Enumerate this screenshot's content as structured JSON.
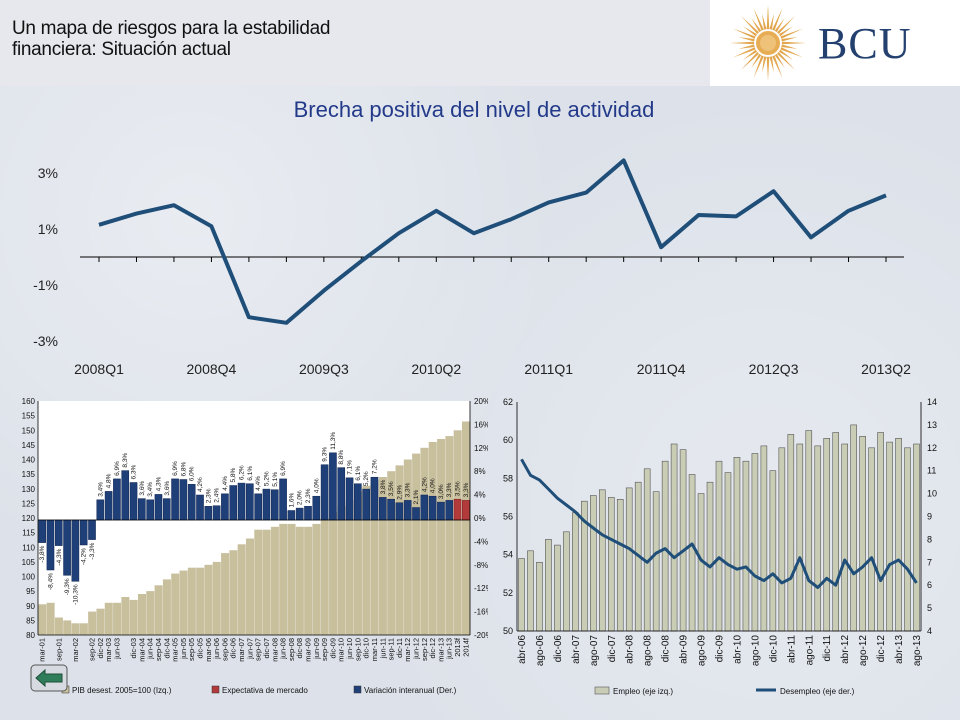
{
  "slide": {
    "title_line1": "Un mapa de riesgos para la estabilidad",
    "title_line2": "financiera: Situación actual",
    "logo_text": "BCU",
    "colors": {
      "navy": "#1f4e79",
      "khaki": "#c8bf9d",
      "maroon": "#b33a3a",
      "brand": "#23406f"
    }
  },
  "chart_data": [
    {
      "type": "line",
      "title": "Brecha positiva del nivel de actividad",
      "x": [
        "2008Q1",
        "2008Q2",
        "2008Q3",
        "2008Q4",
        "2009Q1",
        "2009Q2",
        "2009Q3",
        "2009Q4",
        "2010Q1",
        "2010Q2",
        "2010Q3",
        "2010Q4",
        "2011Q1",
        "2011Q2",
        "2011Q3",
        "2011Q4",
        "2012Q1",
        "2012Q2",
        "2012Q3",
        "2012Q4",
        "2013Q1",
        "2013Q2"
      ],
      "tick_labels": [
        "2008Q1",
        "2008Q4",
        "2009Q3",
        "2010Q2",
        "2011Q1",
        "2011Q4",
        "2012Q3",
        "2013Q2"
      ],
      "y_ticks": [
        "3%",
        "1%",
        "-1%",
        "-3%"
      ],
      "series": [
        {
          "values": [
            1.15,
            1.55,
            1.85,
            1.1,
            -2.15,
            -2.35,
            -1.2,
            -0.15,
            0.85,
            1.65,
            0.85,
            1.35,
            1.95,
            2.3,
            3.45,
            0.35,
            1.5,
            1.45,
            2.35,
            0.7,
            1.65,
            2.2
          ]
        }
      ],
      "ylim": [
        -3,
        3
      ]
    },
    {
      "type": "bar",
      "categories": [
        "mar-01",
        "jun-01",
        "sep-01",
        "dic-01",
        "mar-02",
        "jun-02",
        "sep-02",
        "dic-02",
        "mar-03",
        "jun-03",
        "sep-03",
        "dic-03",
        "mar-04",
        "jun-04",
        "sep-04",
        "dic-04",
        "mar-05",
        "jun-05",
        "sep-05",
        "dic-05",
        "mar-06",
        "jun-06",
        "sep-06",
        "dic-06",
        "mar-07",
        "jun-07",
        "sep-07",
        "dic-07",
        "mar-08",
        "jun-08",
        "sep-08",
        "dic-08",
        "mar-09",
        "jun-09",
        "sep-09",
        "dic-09",
        "mar-10",
        "jun-10",
        "sep-10",
        "dic-10",
        "mar-11",
        "jun-11",
        "sep-11",
        "dic-11",
        "mar-12",
        "jun-12",
        "sep-12",
        "dic-12",
        "mar-13",
        "jun-13",
        "2013f",
        "2014f"
      ],
      "tick_labels": [
        "mar-01",
        "sep-01",
        "mar-02",
        "sep-02",
        "dic-02",
        "mar-03",
        "jun-03",
        "dic-03",
        "mar-04",
        "jun-04",
        "sep-04",
        "dic-04",
        "mar-05",
        "jun-05",
        "sep-05",
        "dic-05",
        "mar-06",
        "jun-06",
        "sep-06",
        "dic-06",
        "mar-07",
        "jun-07",
        "sep-07",
        "dic-07",
        "mar-08",
        "jun-08",
        "sep-08",
        "dic-08",
        "mar-09",
        "jun-09",
        "sep-09",
        "dic-09",
        "mar-10",
        "jun-10",
        "sep-10",
        "dic-10",
        "mar-11",
        "jun-11",
        "sep-11",
        "dic-11",
        "mar-12",
        "jun-12",
        "sep-12",
        "dic-12",
        "mar-13",
        "jun-13",
        "2013f",
        "2014f"
      ],
      "y_ticks_left": [
        "160",
        "155",
        "150",
        "145",
        "140",
        "135",
        "130",
        "125",
        "120",
        "115",
        "110",
        "105",
        "100",
        "95",
        "90",
        "85",
        "80"
      ],
      "y_ticks_right": [
        "20%",
        "16%",
        "12%",
        "8%",
        "4%",
        "0%",
        "-4%",
        "-8%",
        "-12%",
        "-16%",
        "-20%"
      ],
      "ylim_left": [
        80,
        160
      ],
      "ylim_right": [
        -20,
        20
      ],
      "series": [
        {
          "name": "PIB desest. 2005=100 (Izq.)",
          "axis": "left",
          "values": [
            90.5,
            91,
            86,
            85,
            84,
            84,
            88,
            89,
            91,
            91,
            93,
            92,
            94,
            95,
            97,
            99,
            101,
            102,
            103,
            103,
            104,
            105,
            108,
            109,
            111,
            113,
            116,
            116,
            117,
            118,
            118,
            117,
            117,
            118,
            120,
            122,
            124,
            126,
            129,
            131,
            133,
            134,
            136,
            138,
            140,
            142,
            144,
            146,
            147,
            148,
            150,
            153
          ]
        },
        {
          "name": "Expectativa de mercado",
          "axis": "right",
          "values": [
            null,
            null,
            null,
            null,
            null,
            null,
            null,
            null,
            null,
            null,
            null,
            null,
            null,
            null,
            null,
            null,
            null,
            null,
            null,
            null,
            null,
            null,
            null,
            null,
            null,
            null,
            null,
            null,
            null,
            null,
            null,
            null,
            null,
            null,
            null,
            null,
            null,
            null,
            null,
            null,
            null,
            null,
            null,
            null,
            null,
            null,
            null,
            null,
            null,
            null,
            3.5,
            3.3
          ]
        },
        {
          "name": "Variación interanual (Der.)",
          "axis": "right",
          "values": [
            -3.8,
            -8.4,
            -4.3,
            -9.3,
            -10.3,
            -4.2,
            -3.3,
            3.4,
            4.8,
            6.9,
            8.3,
            6.3,
            3.6,
            3.4,
            4.3,
            3.6,
            6.9,
            6.8,
            6.0,
            4.2,
            2.3,
            2.4,
            4.4,
            5.8,
            6.2,
            6.1,
            4.4,
            5.2,
            5.1,
            6.9,
            1.6,
            2.0,
            2.3,
            4.0,
            9.3,
            11.3,
            8.8,
            7.1,
            6.1,
            5.2,
            7.2,
            3.8,
            3.5,
            2.9,
            3.3,
            2.1,
            4.2,
            4.0,
            3.0,
            3.3,
            null,
            null
          ]
        }
      ],
      "data_labels": [
        "-3,8%",
        "-8,4%",
        "-4,3%",
        "-9,3%",
        "-10,3%",
        "-4,2%",
        "-3,3%",
        "3,4%",
        "4,8%",
        "6,9%",
        "8,3%",
        "6,3%",
        "3,6%",
        "3,4%",
        "4,3%",
        "3,6%",
        "6,9%",
        "6,8%",
        "6,0%",
        "4,2%",
        "2,3%",
        "2,4%",
        "4,4%",
        "5,8%",
        "6,2%",
        "6,1%",
        "4,4%",
        "5,2%",
        "5,1%",
        "6,9%",
        "1,6%",
        "2,0%",
        "2,3%",
        "4,0%",
        "9,3%",
        "11,3%",
        "8,8%",
        "7,1%",
        "6,1%",
        "5,2%",
        "7,2%",
        "3,8%",
        "3,5%",
        "2,9%",
        "3,3%",
        "2,1%",
        "4,2%",
        "4,0%",
        "3,0%",
        "3,3%",
        "3,5%",
        "3,3%"
      ]
    },
    {
      "type": "bar",
      "categories": [
        "abr-06",
        "jul-06",
        "ago-06",
        "oct-06",
        "dic-06",
        "feb-07",
        "abr-07",
        "jun-07",
        "ago-07",
        "oct-07",
        "dic-07",
        "feb-08",
        "abr-08",
        "jun-08",
        "ago-08",
        "oct-08",
        "dic-08",
        "feb-09",
        "abr-09",
        "jun-09",
        "ago-09",
        "oct-09",
        "dic-09",
        "feb-10",
        "abr-10",
        "jun-10",
        "ago-10",
        "oct-10",
        "dic-10",
        "feb-11",
        "abr-11",
        "jun-11",
        "ago-11",
        "oct-11",
        "dic-11",
        "feb-12",
        "abr-12",
        "jun-12",
        "ago-12",
        "oct-12",
        "dic-12",
        "feb-13",
        "abr-13",
        "jun-13",
        "ago-13"
      ],
      "tick_labels": [
        "abr-06",
        "ago-06",
        "dic-06",
        "abr-07",
        "ago-07",
        "dic-07",
        "abr-08",
        "ago-08",
        "dic-08",
        "abr-09",
        "ago-09",
        "dic-09",
        "abr-10",
        "ago-10",
        "dic-10",
        "abr-11",
        "ago-11",
        "dic-11",
        "abr-12",
        "ago-12",
        "dic-12",
        "abr-13",
        "ago-13"
      ],
      "y_ticks_left": [
        "62",
        "60",
        "58",
        "56",
        "54",
        "52",
        "50"
      ],
      "y_ticks_right": [
        "14",
        "13",
        "12",
        "11",
        "10",
        "9",
        "8",
        "7",
        "6",
        "5",
        "4"
      ],
      "ylim_left": [
        50,
        62
      ],
      "ylim_right": [
        4,
        14
      ],
      "series": [
        {
          "name": "Empleo (eje izq.)",
          "axis": "left",
          "values": [
            53.8,
            54.2,
            53.6,
            54.8,
            54.5,
            55.2,
            56.2,
            56.8,
            57.1,
            57.4,
            57.0,
            56.9,
            57.5,
            57.8,
            58.5,
            57.3,
            58.9,
            59.8,
            59.5,
            58.2,
            57.2,
            57.8,
            58.9,
            58.3,
            59.1,
            58.9,
            59.3,
            59.7,
            58.4,
            59.6,
            60.3,
            59.8,
            60.5,
            59.7,
            60.1,
            60.4,
            59.8,
            60.8,
            60.2,
            59.6,
            60.4,
            59.9,
            60.1,
            59.6,
            59.8
          ]
        },
        {
          "name": "Desempleo (eje der.)",
          "axis": "right",
          "values": [
            11.5,
            10.8,
            10.6,
            10.2,
            9.8,
            9.5,
            9.2,
            8.8,
            8.5,
            8.2,
            8.0,
            7.8,
            7.6,
            7.3,
            7.0,
            7.4,
            7.6,
            7.2,
            7.5,
            7.8,
            7.1,
            6.8,
            7.2,
            6.9,
            6.7,
            6.8,
            6.4,
            6.2,
            6.5,
            6.1,
            6.3,
            7.2,
            6.2,
            5.9,
            6.3,
            6.0,
            7.1,
            6.5,
            6.8,
            7.2,
            6.2,
            6.9,
            7.1,
            6.7,
            6.1
          ]
        }
      ]
    }
  ]
}
